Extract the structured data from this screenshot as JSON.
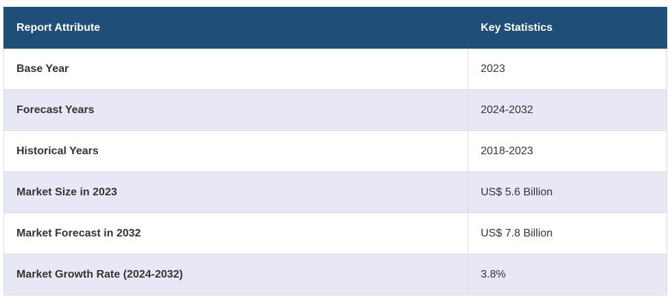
{
  "table": {
    "header": [
      "Report Attribute",
      "Key Statistics"
    ],
    "rows": [
      [
        "Base Year",
        "2023"
      ],
      [
        "Forecast Years",
        "2024-2032"
      ],
      [
        "Historical Years",
        "2018-2023"
      ],
      [
        "Market Size in 2023",
        "US$ 5.6 Billion"
      ],
      [
        "Market Forecast in 2032",
        "US$ 7.8 Billion"
      ],
      [
        "Market Growth Rate (2024-2032)",
        "3.8%"
      ]
    ]
  }
}
